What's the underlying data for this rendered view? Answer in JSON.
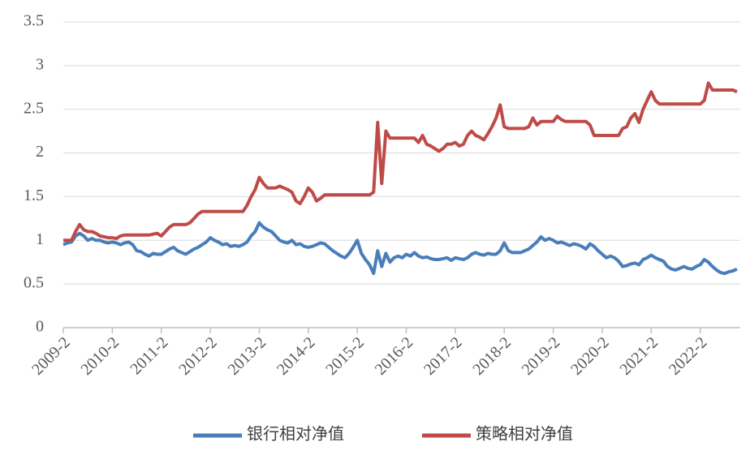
{
  "chart_data": {
    "type": "line",
    "categories": [
      "2009-2",
      null,
      null,
      null,
      null,
      null,
      null,
      null,
      null,
      null,
      null,
      null,
      "2010-2",
      null,
      null,
      null,
      null,
      null,
      null,
      null,
      null,
      null,
      null,
      null,
      "2011-2",
      null,
      null,
      null,
      null,
      null,
      null,
      null,
      null,
      null,
      null,
      null,
      "2012-2",
      null,
      null,
      null,
      null,
      null,
      null,
      null,
      null,
      null,
      null,
      null,
      "2013-2",
      null,
      null,
      null,
      null,
      null,
      null,
      null,
      null,
      null,
      null,
      null,
      "2014-2",
      null,
      null,
      null,
      null,
      null,
      null,
      null,
      null,
      null,
      null,
      null,
      "2015-2",
      null,
      null,
      null,
      null,
      null,
      null,
      null,
      null,
      null,
      null,
      null,
      "2016-2",
      null,
      null,
      null,
      null,
      null,
      null,
      null,
      null,
      null,
      null,
      null,
      "2017-2",
      null,
      null,
      null,
      null,
      null,
      null,
      null,
      null,
      null,
      null,
      null,
      "2018-2",
      null,
      null,
      null,
      null,
      null,
      null,
      null,
      null,
      null,
      null,
      null,
      "2019-2",
      null,
      null,
      null,
      null,
      null,
      null,
      null,
      null,
      null,
      null,
      null,
      "2020-2",
      null,
      null,
      null,
      null,
      null,
      null,
      null,
      null,
      null,
      null,
      null,
      "2021-2",
      null,
      null,
      null,
      null,
      null,
      null,
      null,
      null,
      null,
      null,
      null,
      "2022-2",
      null,
      null,
      null,
      null,
      null,
      null,
      null,
      null,
      null
    ],
    "series": [
      {
        "name": "银行相对净值",
        "color": "#4a7ebb",
        "values": [
          0.95,
          0.97,
          0.98,
          1.05,
          1.08,
          1.05,
          1.0,
          1.02,
          1.0,
          1.0,
          0.98,
          0.97,
          0.98,
          0.97,
          0.95,
          0.97,
          0.98,
          0.95,
          0.88,
          0.87,
          0.84,
          0.82,
          0.85,
          0.84,
          0.84,
          0.87,
          0.9,
          0.92,
          0.88,
          0.86,
          0.84,
          0.87,
          0.9,
          0.92,
          0.95,
          0.98,
          1.03,
          1.0,
          0.98,
          0.95,
          0.96,
          0.93,
          0.94,
          0.93,
          0.95,
          0.98,
          1.05,
          1.1,
          1.2,
          1.15,
          1.12,
          1.1,
          1.05,
          1.0,
          0.98,
          0.97,
          1.0,
          0.95,
          0.96,
          0.93,
          0.92,
          0.93,
          0.95,
          0.97,
          0.96,
          0.92,
          0.88,
          0.85,
          0.82,
          0.8,
          0.85,
          0.92,
          1.0,
          0.85,
          0.78,
          0.72,
          0.62,
          0.88,
          0.7,
          0.85,
          0.75,
          0.8,
          0.82,
          0.8,
          0.84,
          0.82,
          0.86,
          0.82,
          0.8,
          0.81,
          0.79,
          0.78,
          0.78,
          0.79,
          0.8,
          0.77,
          0.8,
          0.79,
          0.78,
          0.8,
          0.84,
          0.86,
          0.84,
          0.83,
          0.85,
          0.84,
          0.84,
          0.88,
          0.97,
          0.88,
          0.86,
          0.86,
          0.86,
          0.88,
          0.9,
          0.94,
          0.98,
          1.04,
          1.0,
          1.02,
          1.0,
          0.97,
          0.98,
          0.96,
          0.94,
          0.96,
          0.95,
          0.93,
          0.9,
          0.96,
          0.93,
          0.88,
          0.84,
          0.8,
          0.82,
          0.8,
          0.76,
          0.7,
          0.71,
          0.73,
          0.74,
          0.72,
          0.78,
          0.8,
          0.83,
          0.8,
          0.78,
          0.76,
          0.7,
          0.67,
          0.66,
          0.68,
          0.7,
          0.68,
          0.67,
          0.7,
          0.72,
          0.78,
          0.75,
          0.7,
          0.66,
          0.63,
          0.62,
          0.64,
          0.65,
          0.67
        ]
      },
      {
        "name": "策略相对净值",
        "color": "#be4b48",
        "values": [
          1.0,
          1.0,
          1.0,
          1.1,
          1.18,
          1.12,
          1.1,
          1.1,
          1.08,
          1.05,
          1.04,
          1.03,
          1.03,
          1.02,
          1.05,
          1.06,
          1.06,
          1.06,
          1.06,
          1.06,
          1.06,
          1.06,
          1.07,
          1.08,
          1.05,
          1.1,
          1.15,
          1.18,
          1.18,
          1.18,
          1.18,
          1.2,
          1.25,
          1.3,
          1.33,
          1.33,
          1.33,
          1.33,
          1.33,
          1.33,
          1.33,
          1.33,
          1.33,
          1.33,
          1.33,
          1.4,
          1.5,
          1.58,
          1.72,
          1.65,
          1.6,
          1.6,
          1.6,
          1.62,
          1.6,
          1.58,
          1.55,
          1.45,
          1.42,
          1.5,
          1.6,
          1.55,
          1.45,
          1.48,
          1.52,
          1.52,
          1.52,
          1.52,
          1.52,
          1.52,
          1.52,
          1.52,
          1.52,
          1.52,
          1.52,
          1.52,
          1.55,
          2.35,
          1.65,
          2.25,
          2.17,
          2.17,
          2.17,
          2.17,
          2.17,
          2.17,
          2.17,
          2.12,
          2.2,
          2.1,
          2.08,
          2.05,
          2.02,
          2.05,
          2.1,
          2.1,
          2.12,
          2.08,
          2.1,
          2.2,
          2.25,
          2.2,
          2.18,
          2.15,
          2.22,
          2.3,
          2.4,
          2.55,
          2.3,
          2.28,
          2.28,
          2.28,
          2.28,
          2.28,
          2.3,
          2.4,
          2.32,
          2.36,
          2.36,
          2.36,
          2.36,
          2.42,
          2.38,
          2.36,
          2.36,
          2.36,
          2.36,
          2.36,
          2.36,
          2.32,
          2.2,
          2.2,
          2.2,
          2.2,
          2.2,
          2.2,
          2.2,
          2.28,
          2.3,
          2.4,
          2.45,
          2.35,
          2.5,
          2.6,
          2.7,
          2.6,
          2.56,
          2.56,
          2.56,
          2.56,
          2.56,
          2.56,
          2.56,
          2.56,
          2.56,
          2.56,
          2.56,
          2.6,
          2.8,
          2.72,
          2.72,
          2.72,
          2.72,
          2.72,
          2.72,
          2.7
        ]
      }
    ],
    "ylim": [
      0,
      3.5
    ],
    "yticks": [
      0,
      0.5,
      1,
      1.5,
      2,
      2.5,
      3,
      3.5
    ],
    "grid": true,
    "legend": "bottom"
  }
}
